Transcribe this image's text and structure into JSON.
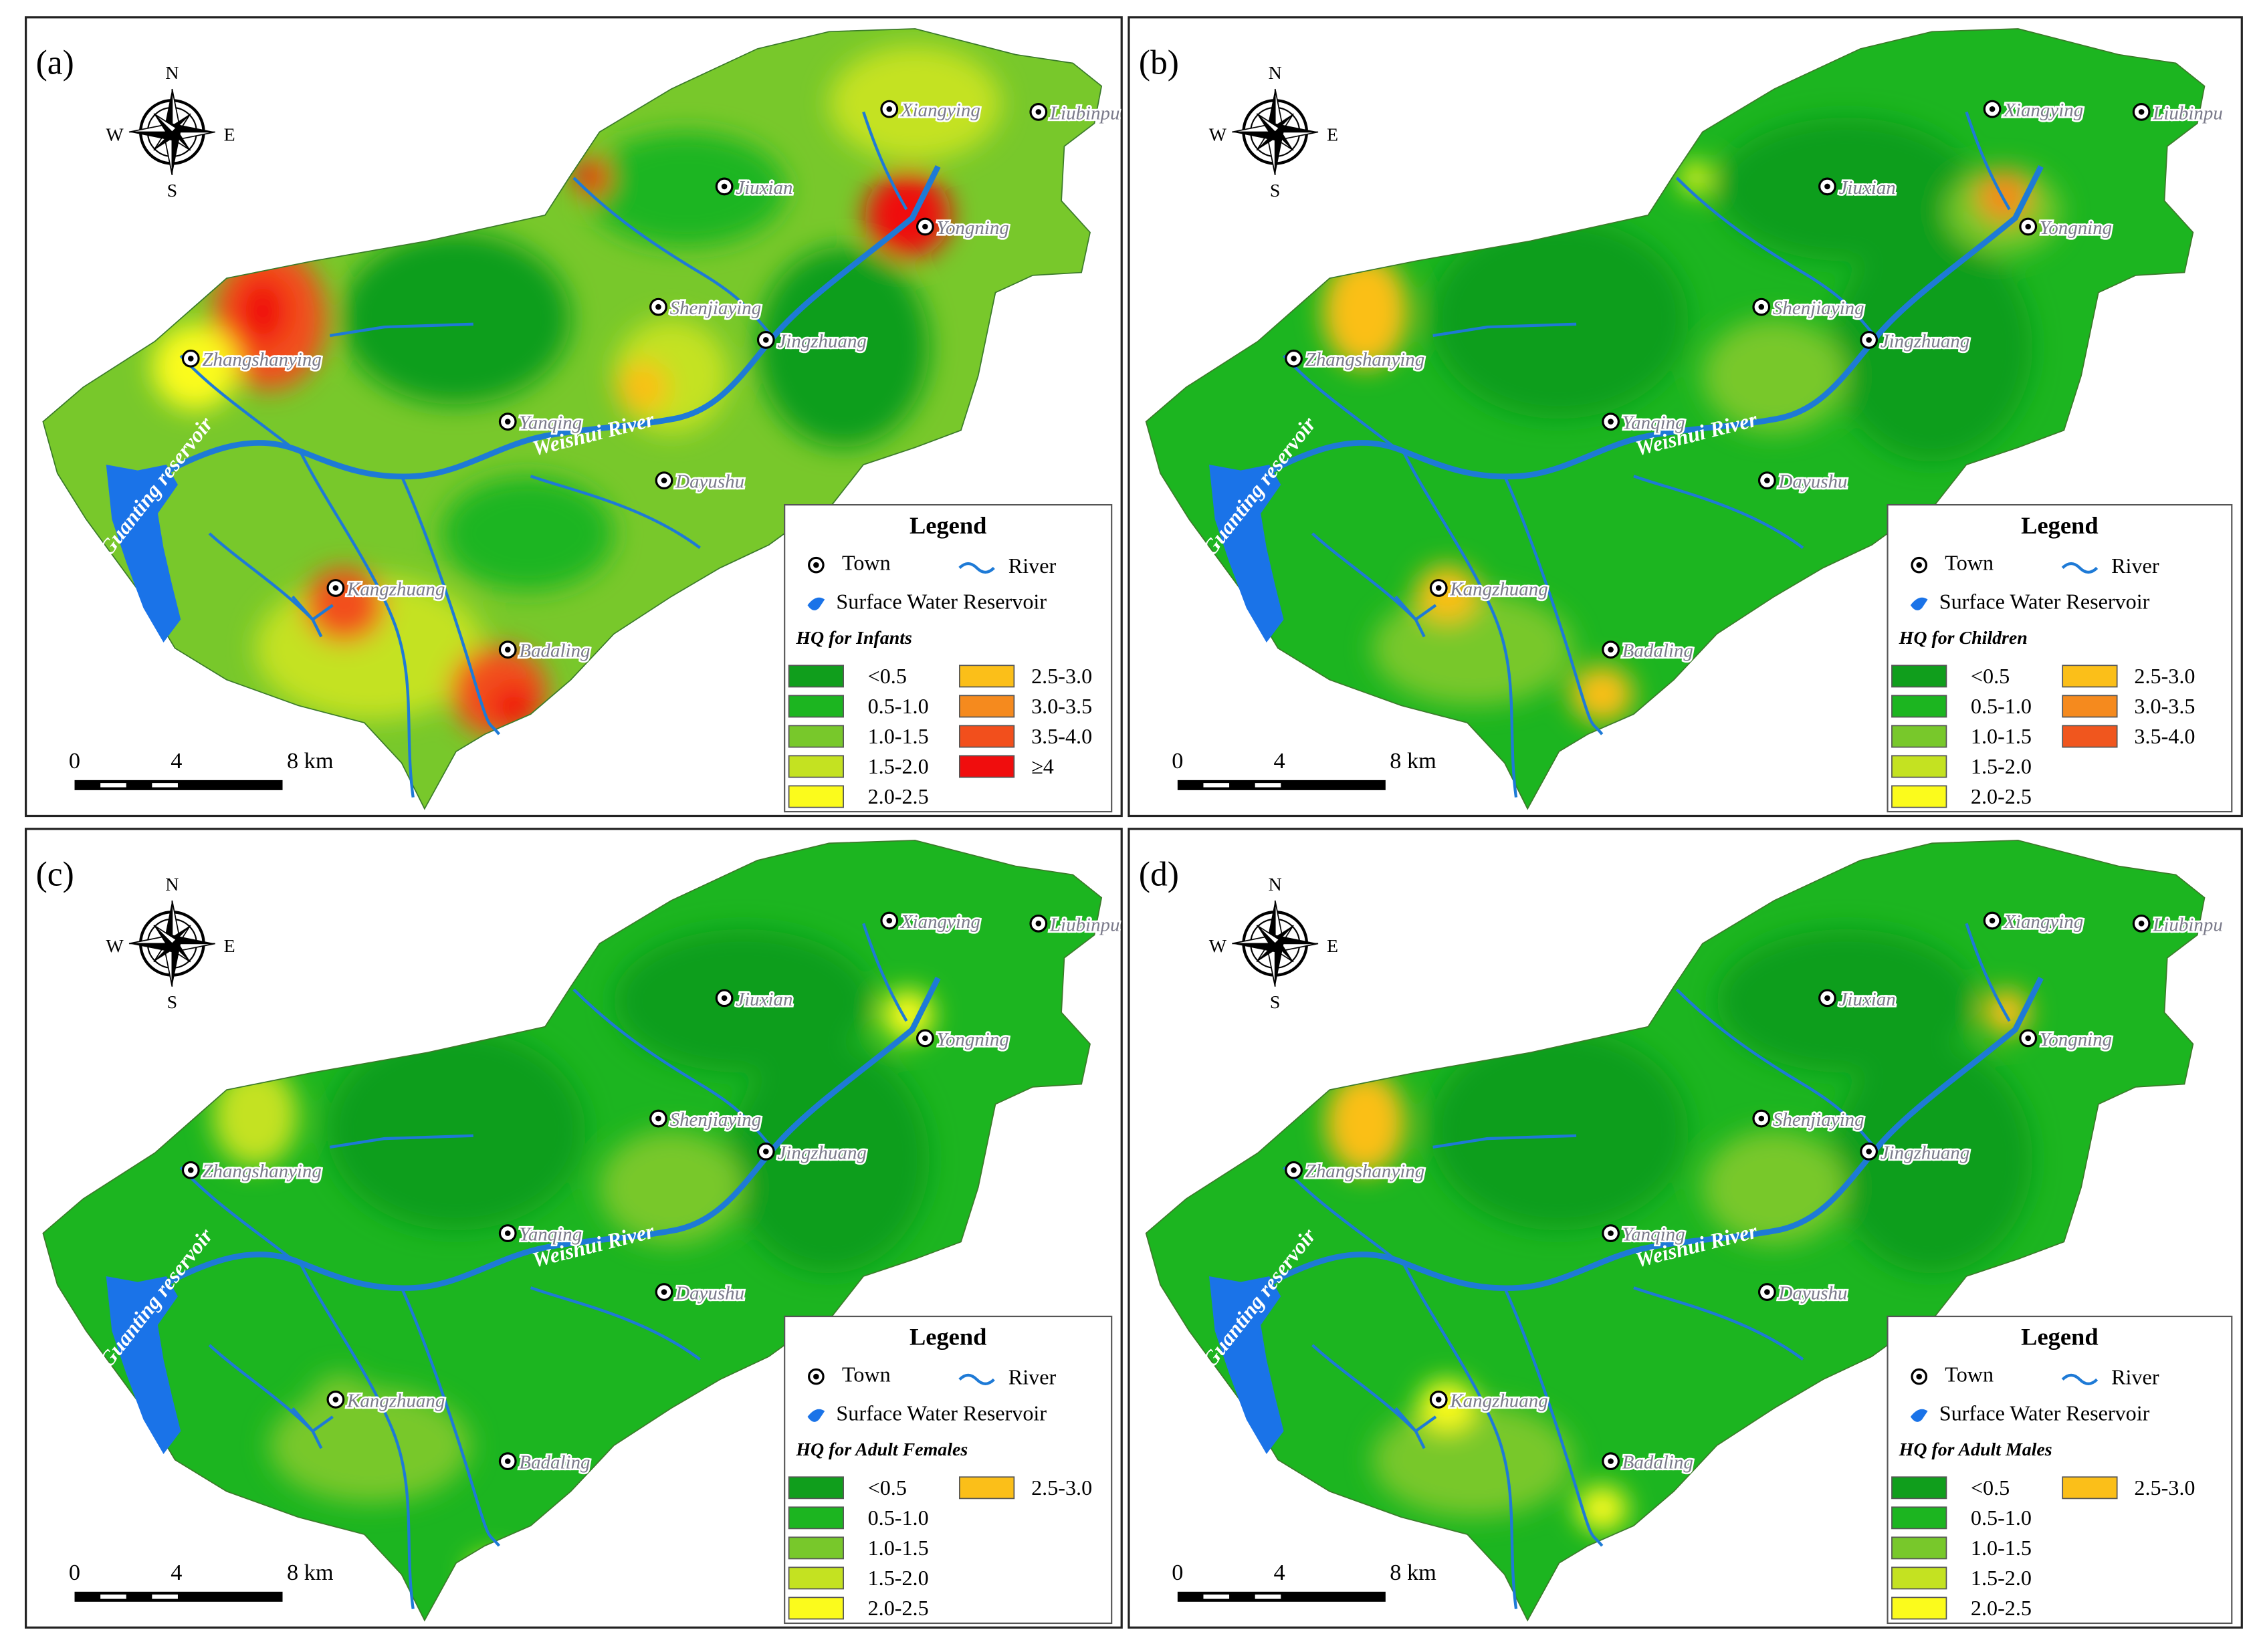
{
  "panels": [
    {
      "label": "(a)",
      "hq_title": "HQ for Infants",
      "classes": [
        {
          "label": "<0.5",
          "color": "#109e1c"
        },
        {
          "label": "0.5-1.0",
          "color": "#1cb520"
        },
        {
          "label": "1.0-1.5",
          "color": "#78c82b"
        },
        {
          "label": "1.5-2.0",
          "color": "#c4e221"
        },
        {
          "label": "2.0-2.5",
          "color": "#fbfb1c"
        },
        {
          "label": "2.5-3.0",
          "color": "#fbbf19"
        },
        {
          "label": "3.0-3.5",
          "color": "#f58a1e"
        },
        {
          "label": "3.5-4.0",
          "color": "#f24f1c"
        },
        {
          "label": "≥4",
          "color": "#f00d0d"
        }
      ]
    },
    {
      "label": "(b)",
      "hq_title": "HQ for Children",
      "classes": [
        {
          "label": "<0.5",
          "color": "#109e1c"
        },
        {
          "label": "0.5-1.0",
          "color": "#1cb520"
        },
        {
          "label": "1.0-1.5",
          "color": "#78c82b"
        },
        {
          "label": "1.5-2.0",
          "color": "#c4e221"
        },
        {
          "label": "2.0-2.5",
          "color": "#fbfb1c"
        },
        {
          "label": "2.5-3.0",
          "color": "#fbbf19"
        },
        {
          "label": "3.0-3.5",
          "color": "#f58a1e"
        },
        {
          "label": "3.5-4.0",
          "color": "#f0561e"
        }
      ]
    },
    {
      "label": "(c)",
      "hq_title": "HQ for Adult Females",
      "classes": [
        {
          "label": "<0.5",
          "color": "#109e1c"
        },
        {
          "label": "0.5-1.0",
          "color": "#1cb520"
        },
        {
          "label": "1.0-1.5",
          "color": "#78c82b"
        },
        {
          "label": "1.5-2.0",
          "color": "#c4e221"
        },
        {
          "label": "2.0-2.5",
          "color": "#fbfb1c"
        },
        {
          "label": "2.5-3.0",
          "color": "#fbbf19"
        }
      ]
    },
    {
      "label": "(d)",
      "hq_title": "HQ for Adult Males",
      "classes": [
        {
          "label": "<0.5",
          "color": "#109e1c"
        },
        {
          "label": "0.5-1.0",
          "color": "#1cb520"
        },
        {
          "label": "1.0-1.5",
          "color": "#78c82b"
        },
        {
          "label": "1.5-2.0",
          "color": "#c4e221"
        },
        {
          "label": "2.0-2.5",
          "color": "#fbfb1c"
        },
        {
          "label": "2.5-3.0",
          "color": "#fbbf19"
        }
      ]
    }
  ],
  "legend": {
    "title": "Legend",
    "town": "Town",
    "river": "River",
    "reservoir": "Surface Water Reservoir"
  },
  "compass": {
    "n": "N",
    "e": "E",
    "s": "S",
    "w": "W"
  },
  "scale": [
    "0",
    "4",
    "8 km"
  ],
  "towns": [
    "Xiangying",
    "Liubinpu",
    "Jiuxian",
    "Yongning",
    "Shenjiaying",
    "Jingzhuang",
    "Zhangshanying",
    "Yanqing",
    "Dayushu",
    "Kangzhuang",
    "Badaling"
  ],
  "features": {
    "reservoir": "Guanting reservoir",
    "river": "Weishui River"
  }
}
